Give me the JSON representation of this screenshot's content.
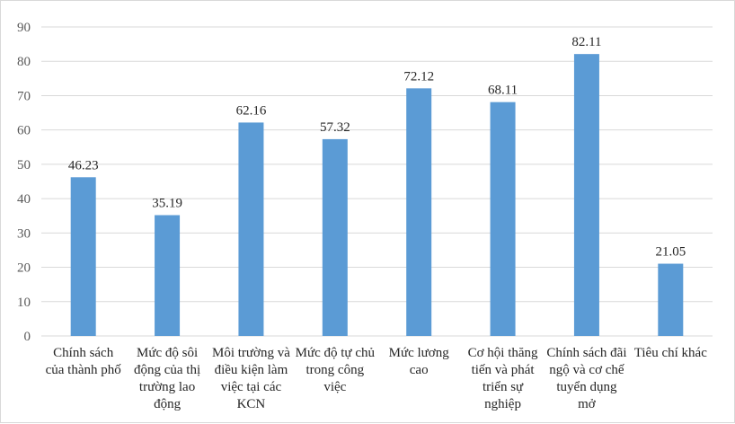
{
  "chart_data": {
    "type": "bar",
    "title": "",
    "xlabel": "",
    "ylabel": "",
    "ylim": [
      0,
      90
    ],
    "yticks": [
      0,
      10,
      20,
      30,
      40,
      50,
      60,
      70,
      80,
      90
    ],
    "grid": true,
    "legend": "none",
    "bar_color": "#5b9bd5",
    "gridline_color": "#d9d9d9",
    "categories": [
      [
        "Chính sách",
        "của thành phố"
      ],
      [
        "Mức độ sôi",
        "động của thị",
        "trường lao",
        "động"
      ],
      [
        "Môi trường và",
        "điều kiện làm",
        "việc tại các",
        "KCN"
      ],
      [
        "Mức độ tự chủ",
        "trong công",
        "việc"
      ],
      [
        "Mức lương",
        "cao"
      ],
      [
        "Cơ hội thăng",
        "tiến và phát",
        "triển sự",
        "nghiệp"
      ],
      [
        "Chính sách đãi",
        "ngộ và cơ chế",
        "tuyển dụng",
        "mở"
      ],
      [
        "Tiêu chí khác"
      ]
    ],
    "values": [
      46.23,
      35.19,
      62.16,
      57.32,
      72.12,
      68.11,
      82.11,
      21.05
    ],
    "value_labels": [
      "46.23",
      "35.19",
      "62.16",
      "57.32",
      "72.12",
      "68.11",
      "82.11",
      "21.05"
    ]
  }
}
